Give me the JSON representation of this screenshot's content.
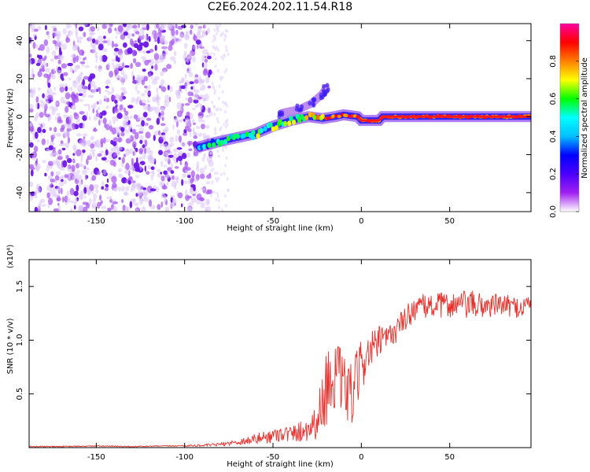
{
  "title": "C2E6.2024.202.11.54.R18",
  "chart_data": [
    {
      "type": "heatmap",
      "xlabel": "Height of straight line (km)",
      "ylabel": "Frequency (Hz)",
      "xlim": [
        -188,
        96
      ],
      "ylim": [
        -50,
        49
      ],
      "x_ticks": [
        -150,
        -100,
        -50,
        0,
        50
      ],
      "y_ticks": [
        -40,
        -20,
        0,
        20,
        40
      ],
      "colorbar": {
        "label": "Normalized spectral amplitude",
        "range": [
          0,
          1
        ],
        "ticks": [
          "0.0",
          "0.2",
          "0.4",
          "0.6",
          "0.8"
        ],
        "tick_values": [
          0,
          0.2,
          0.4,
          0.6,
          0.8
        ],
        "colors": [
          "#ffffff",
          "#a020f0",
          "#4b00ff",
          "#0000ff",
          "#00bfff",
          "#00ffff",
          "#00ff00",
          "#ffff00",
          "#ff7f00",
          "#ff0000",
          "#ff00a0"
        ]
      },
      "noise_region_x": [
        -188,
        -85
      ],
      "signal_track": [
        {
          "x": -92,
          "y": -16
        },
        {
          "x": -80,
          "y": -13
        },
        {
          "x": -70,
          "y": -11
        },
        {
          "x": -60,
          "y": -9
        },
        {
          "x": -50,
          "y": -5
        },
        {
          "x": -40,
          "y": -2
        },
        {
          "x": -30,
          "y": 0
        },
        {
          "x": -22,
          "y": -1
        },
        {
          "x": -15,
          "y": 0
        },
        {
          "x": -10,
          "y": 1
        },
        {
          "x": -2,
          "y": 0
        },
        {
          "x": 0,
          "y": -2
        },
        {
          "x": 10,
          "y": -2
        },
        {
          "x": 12,
          "y": 0
        },
        {
          "x": 96,
          "y": 0
        }
      ],
      "plume": [
        {
          "x": -45,
          "y": 2
        },
        {
          "x": -35,
          "y": 4
        },
        {
          "x": -28,
          "y": 7
        },
        {
          "x": -22,
          "y": 12
        },
        {
          "x": -20,
          "y": 15
        }
      ]
    },
    {
      "type": "line",
      "xlabel": "Height of straight line (km)",
      "ylabel": "SNR (10 * v/v)",
      "y_multiplier": "(x10⁴)",
      "xlim": [
        -188,
        96
      ],
      "ylim": [
        0,
        1.75
      ],
      "x_ticks": [
        -150,
        -100,
        -50,
        0,
        50
      ],
      "y_ticks": [
        "0.5",
        "1.0",
        "1.5"
      ],
      "y_tick_values": [
        0.5,
        1.0,
        1.5
      ],
      "series_color": "#e8312c",
      "x": [
        -188,
        -170,
        -150,
        -130,
        -110,
        -90,
        -80,
        -70,
        -60,
        -50,
        -45,
        -40,
        -35,
        -30,
        -25,
        -20,
        -15,
        -10,
        -5,
        0,
        5,
        10,
        15,
        20,
        25,
        30,
        40,
        50,
        60,
        70,
        80,
        90,
        96
      ],
      "mean": [
        0.01,
        0.01,
        0.015,
        0.01,
        0.015,
        0.02,
        0.03,
        0.05,
        0.08,
        0.11,
        0.14,
        0.12,
        0.15,
        0.18,
        0.25,
        0.55,
        0.7,
        0.55,
        0.48,
        0.78,
        0.9,
        0.98,
        1.02,
        1.1,
        1.2,
        1.3,
        1.32,
        1.33,
        1.33,
        1.32,
        1.33,
        1.3,
        1.35
      ],
      "spread": [
        0.005,
        0.005,
        0.005,
        0.005,
        0.005,
        0.01,
        0.015,
        0.03,
        0.05,
        0.07,
        0.08,
        0.08,
        0.1,
        0.12,
        0.18,
        0.35,
        0.35,
        0.3,
        0.3,
        0.25,
        0.18,
        0.15,
        0.12,
        0.12,
        0.12,
        0.12,
        0.12,
        0.12,
        0.14,
        0.12,
        0.1,
        0.1,
        0.1
      ]
    }
  ]
}
